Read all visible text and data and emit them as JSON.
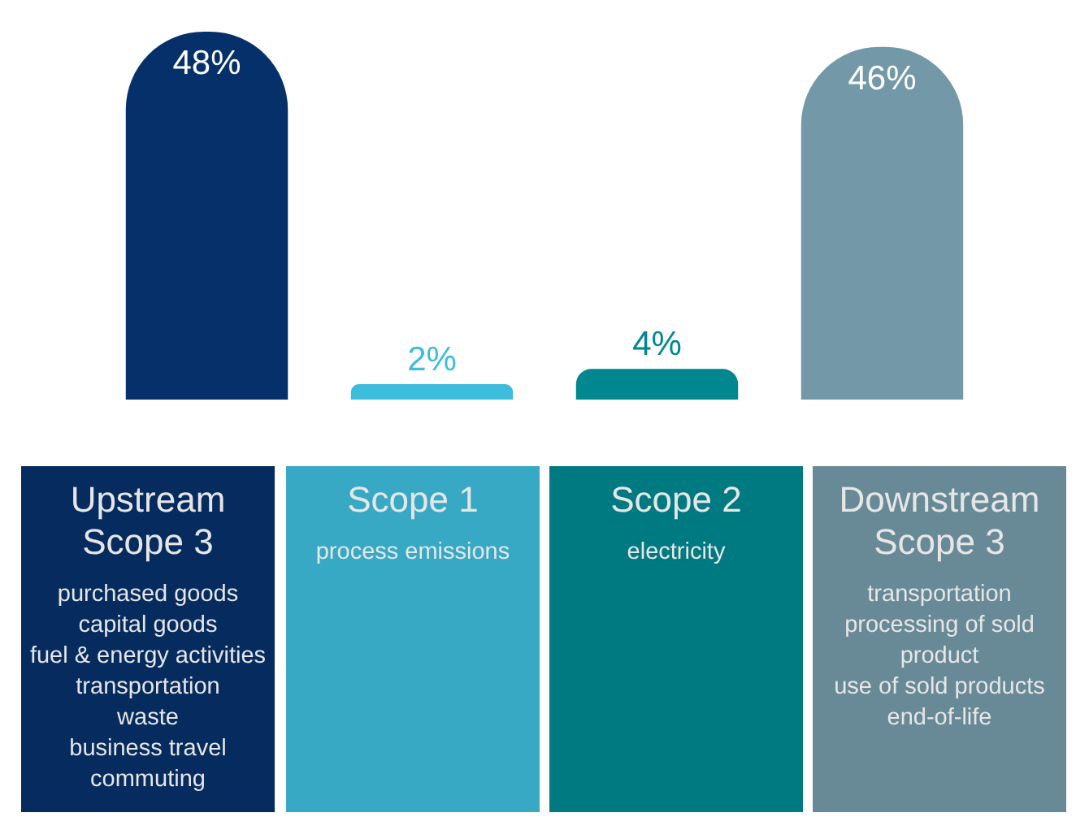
{
  "chart_data": {
    "type": "bar",
    "categories": [
      "Upstream Scope 3",
      "Scope 1",
      "Scope 2",
      "Downstream Scope 3"
    ],
    "values": [
      48,
      2,
      4,
      46
    ],
    "colors": [
      "#06306a",
      "#3dbcdb",
      "#00878f",
      "#7399a8"
    ],
    "value_labels": [
      "48%",
      "2%",
      "4%",
      "46%"
    ],
    "annotations": [
      "purchased goods\ncapital goods\nfuel & energy activities\ntransportation\nwaste\nbusiness travel\ncommuting",
      "process emissions",
      "electricity",
      "transportation\nprocessing of sold product\nuse of sold products\nend-of-life"
    ],
    "legend": false,
    "tick_labels": false
  }
}
